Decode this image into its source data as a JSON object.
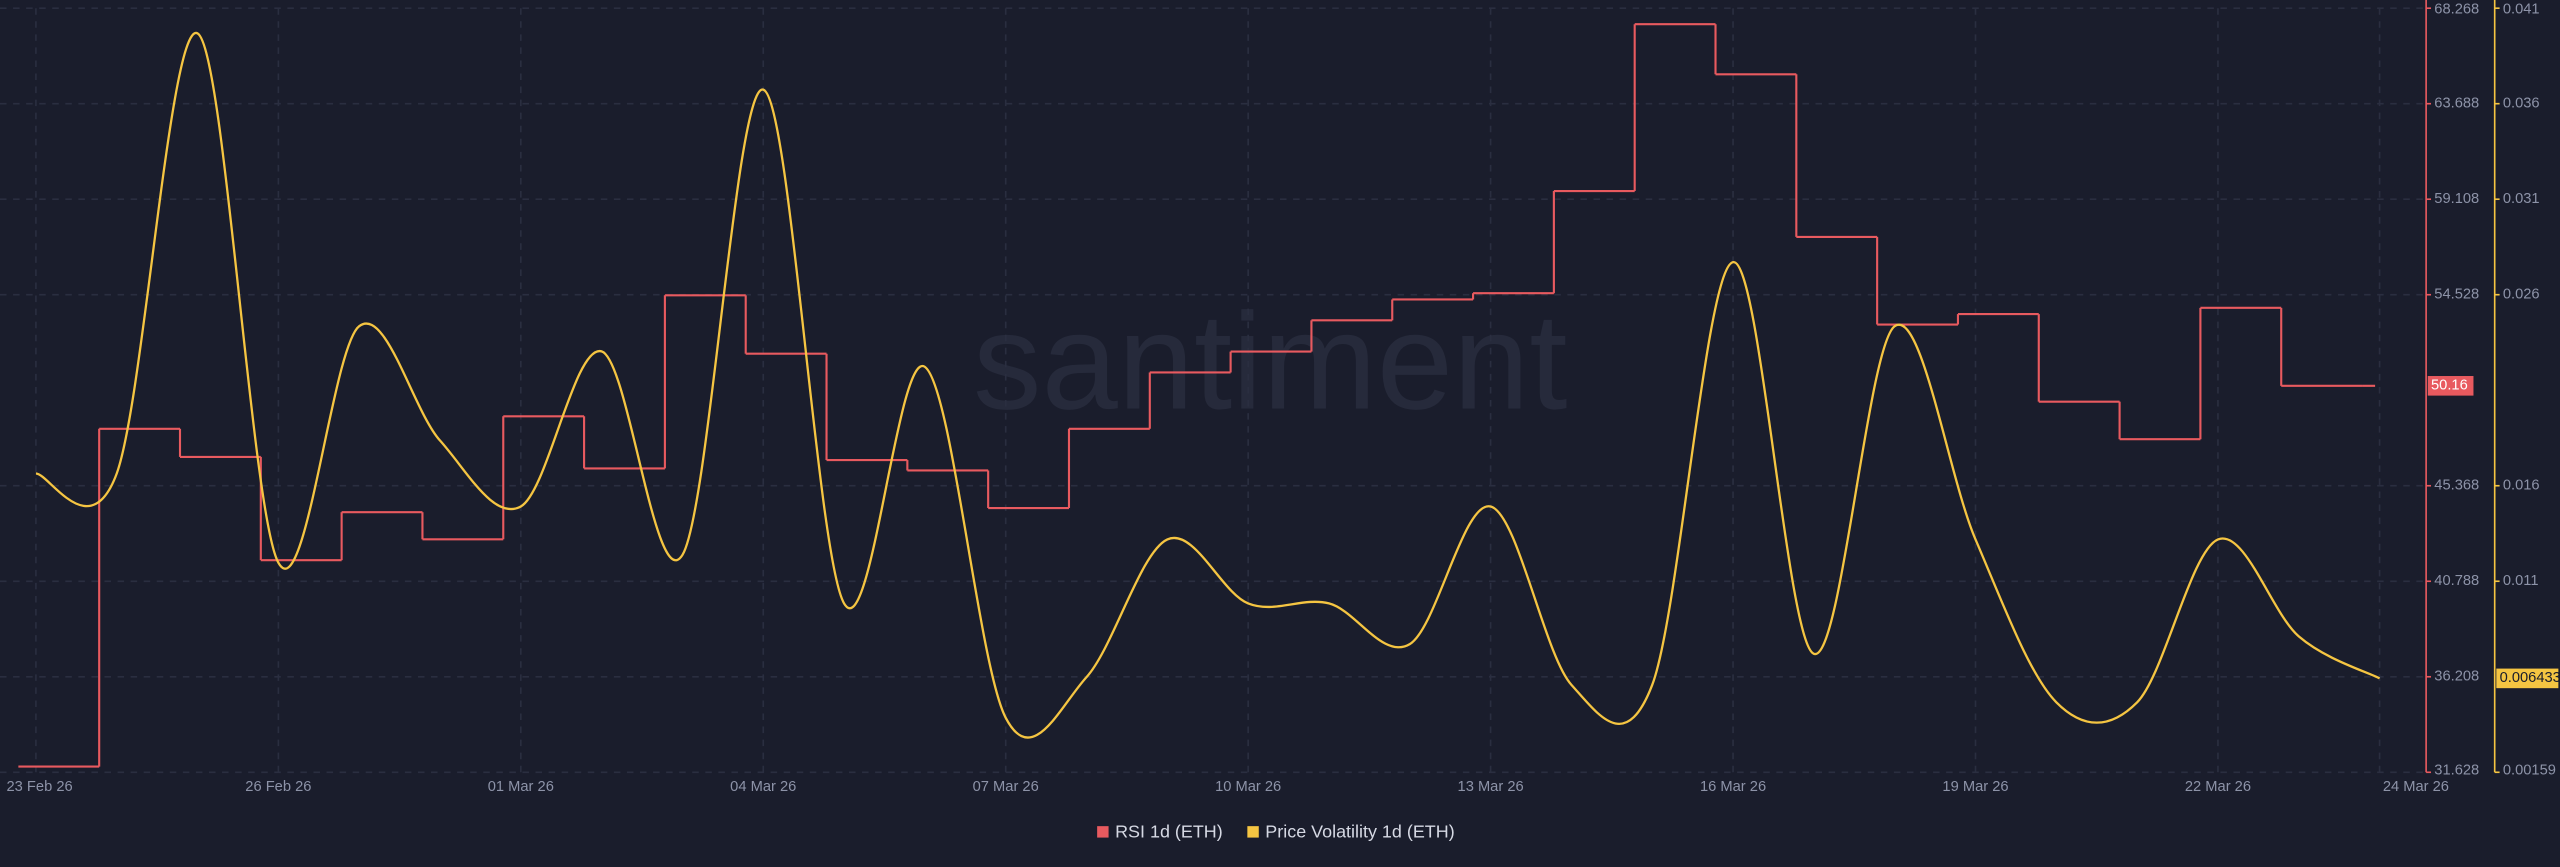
{
  "chart_data": {
    "type": "line",
    "watermark": "santiment",
    "x": [
      "23 Feb 26",
      "24 Feb 26",
      "25 Feb 26",
      "26 Feb 26",
      "27 Feb 26",
      "28 Feb 26",
      "01 Mar 26",
      "02 Mar 26",
      "03 Mar 26",
      "04 Mar 26",
      "05 Mar 26",
      "06 Mar 26",
      "07 Mar 26",
      "08 Mar 26",
      "09 Mar 26",
      "10 Mar 26",
      "11 Mar 26",
      "12 Mar 26",
      "13 Mar 26",
      "14 Mar 26",
      "15 Mar 26",
      "16 Mar 26",
      "17 Mar 26",
      "18 Mar 26",
      "19 Mar 26",
      "20 Mar 26",
      "21 Mar 26",
      "22 Mar 26",
      "23 Mar 26",
      "24 Mar 26"
    ],
    "xticks": [
      "23 Feb 26",
      "26 Feb 26",
      "01 Mar 26",
      "04 Mar 26",
      "07 Mar 26",
      "10 Mar 26",
      "13 Mar 26",
      "16 Mar 26",
      "19 Mar 26",
      "22 Mar 26",
      "24 Mar 26"
    ],
    "ylim": [
      31.628,
      68.268
    ],
    "yticks": [
      31.628,
      36.208,
      40.788,
      45.368,
      54.528,
      59.108,
      63.688,
      68.268
    ],
    "y2lim": [
      0.00159,
      0.041
    ],
    "y2ticks": [
      0.00159,
      {
        "value": 0.011443,
        "label": "0.011"
      },
      {
        "value": 0.016369,
        "label": "0.016"
      },
      {
        "value": 0.026222,
        "label": "0.026"
      },
      {
        "value": 0.031148,
        "label": "0.031"
      },
      {
        "value": 0.036074,
        "label": "0.036"
      },
      0.041
    ],
    "grid": true,
    "legend": "bottom",
    "series": [
      {
        "name": "RSI 1d (ETH)",
        "color": "#e85a5f",
        "axis": "y",
        "step": true,
        "values": [
          31.9,
          48.1,
          46.75,
          41.8,
          44.1,
          42.8,
          48.7,
          46.2,
          54.5,
          51.7,
          46.6,
          46.1,
          44.3,
          48.1,
          50.8,
          51.8,
          53.3,
          54.3,
          54.6,
          59.5,
          67.5,
          65.1,
          57.3,
          53.1,
          53.6,
          49.4,
          47.6,
          53.9,
          50.16,
          50.16
        ],
        "current_value": 50.16
      },
      {
        "name": "Price Volatility 1d (ETH)",
        "color": "#f5c542",
        "axis": "y2",
        "step": false,
        "values": [
          0.017,
          0.017,
          0.0397,
          0.0124,
          0.0246,
          0.0187,
          0.0153,
          0.0233,
          0.0128,
          0.0368,
          0.0103,
          0.0225,
          0.0044,
          0.0065,
          0.0136,
          0.0103,
          0.0103,
          0.0082,
          0.0153,
          0.0061,
          0.0061,
          0.0279,
          0.0077,
          0.0246,
          0.0136,
          0.0052,
          0.0052,
          0.0136,
          0.0086,
          0.006433
        ],
        "current_value": 0.006433
      }
    ]
  }
}
